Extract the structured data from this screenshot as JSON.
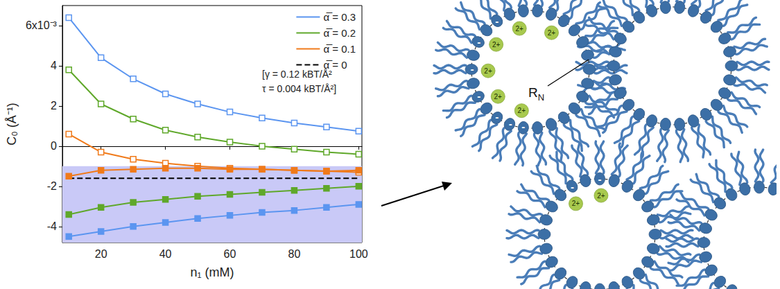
{
  "chart_data": {
    "type": "line",
    "x": [
      10,
      20,
      30,
      40,
      50,
      60,
      70,
      80,
      90,
      100
    ],
    "xlim": [
      8,
      101
    ],
    "xticks": [
      20,
      40,
      60,
      80,
      100
    ],
    "ylim": [
      -4.8,
      7.0
    ],
    "yticks": [
      -4,
      -2,
      0,
      2,
      4,
      {
        "value": 6,
        "label": "6x10⁻³"
      }
    ],
    "x_label": "n₁ (mM)",
    "y_label": "C₀ (Å⁻¹)",
    "annotations": [
      "[γ = 0.12 kBT/Å²",
      "τ = 0.004 kBT/Å²]"
    ],
    "legend": "upper right",
    "grid": false,
    "shaded_band": {
      "ylim": [
        -4.8,
        -1.0
      ],
      "color": "#c9c9f7"
    },
    "series": [
      {
        "name": "α̅ = 0.3",
        "color": "#5b95f0",
        "marker": "open-square",
        "line_style": "solid",
        "values": [
          6.4,
          4.4,
          3.35,
          2.6,
          2.1,
          1.7,
          1.4,
          1.15,
          0.95,
          0.75
        ]
      },
      {
        "name": "α̅ = 0.3",
        "color": "#5b95f0",
        "marker": "filled-square",
        "line_style": "solid",
        "values": [
          -4.5,
          -4.25,
          -4.0,
          -3.8,
          -3.6,
          -3.45,
          -3.3,
          -3.2,
          -3.05,
          -2.9
        ]
      },
      {
        "name": "α̅ = 0.2",
        "color": "#5fa82a",
        "marker": "open-square",
        "line_style": "solid",
        "values": [
          3.8,
          2.1,
          1.35,
          0.8,
          0.45,
          0.2,
          0.0,
          -0.15,
          -0.3,
          -0.4
        ]
      },
      {
        "name": "α̅ = 0.2",
        "color": "#5fa82a",
        "marker": "filled-square",
        "line_style": "solid",
        "values": [
          -3.4,
          -3.05,
          -2.8,
          -2.65,
          -2.5,
          -2.4,
          -2.3,
          -2.2,
          -2.1,
          -2.0
        ]
      },
      {
        "name": "α̅ = 0.1",
        "color": "#f07a1a",
        "marker": "open-square",
        "line_style": "solid",
        "values": [
          0.6,
          -0.3,
          -0.65,
          -0.85,
          -1.0,
          -1.1,
          -1.15,
          -1.2,
          -1.25,
          -1.3
        ]
      },
      {
        "name": "α̅ = 0.1",
        "color": "#f07a1a",
        "marker": "filled-square",
        "line_style": "solid",
        "values": [
          -1.5,
          -1.2,
          -1.15,
          -1.1,
          -1.1,
          -1.15,
          -1.15,
          -1.2,
          -1.25,
          -1.2
        ]
      },
      {
        "name": "α̅ = 0",
        "color": "#000000",
        "marker": "none",
        "line_style": "dashed",
        "values": [
          -1.6,
          -1.6,
          -1.6,
          -1.6,
          -1.6,
          -1.6,
          -1.6,
          -1.6,
          -1.6,
          -1.6
        ]
      }
    ]
  },
  "diagram": {
    "head_charge": "-",
    "ion_label": "2+",
    "radius_label": {
      "text": "R",
      "subscript": "N"
    }
  }
}
